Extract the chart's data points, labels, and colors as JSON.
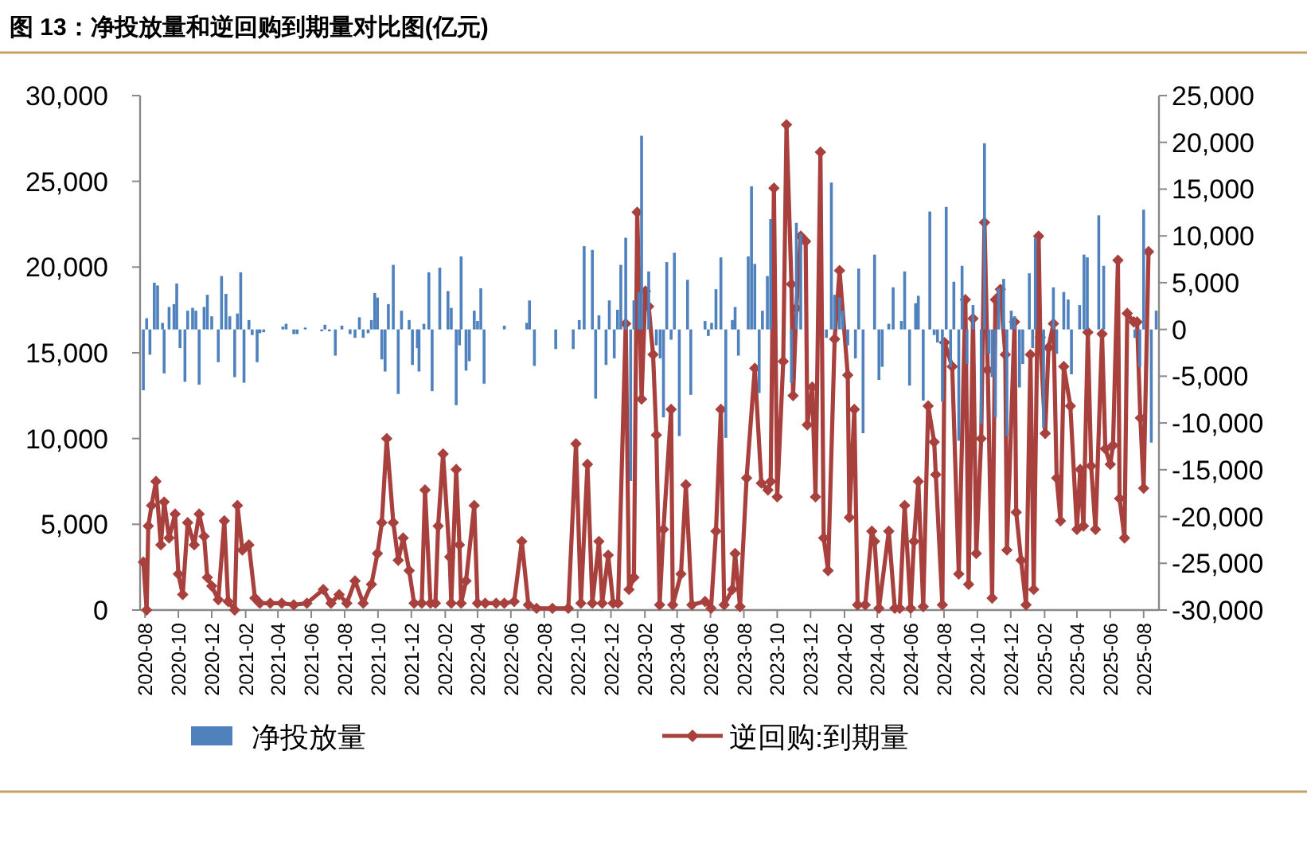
{
  "chart_data": {
    "type": "bar",
    "title": "图 13：净投放量和逆回购到期量对比图(亿元)",
    "xlim": [
      "2020-07-23",
      "2025-08-29"
    ],
    "xticks": [
      "2020-08",
      "2020-10",
      "2020-12",
      "2021-02",
      "2021-04",
      "2021-06",
      "2021-08",
      "2021-10",
      "2021-12",
      "2022-02",
      "2022-04",
      "2022-06",
      "2022-08",
      "2022-10",
      "2022-12",
      "2023-02",
      "2023-04",
      "2023-06",
      "2023-08",
      "2023-10",
      "2023-12",
      "2024-02",
      "2024-04",
      "2024-06",
      "2024-08",
      "2024-10",
      "2024-12",
      "2025-02",
      "2025-04",
      "2025-06",
      "2025-08"
    ],
    "ylim": [
      0,
      30000
    ],
    "yticks": [
      {
        "value": 0,
        "label": "0"
      },
      {
        "value": 5000,
        "label": "5,000"
      },
      {
        "value": 10000,
        "label": "10,000"
      },
      {
        "value": 15000,
        "label": "15,000"
      },
      {
        "value": 20000,
        "label": "20,000"
      },
      {
        "value": 25000,
        "label": "25,000"
      },
      {
        "value": 30000,
        "label": "30,000"
      }
    ],
    "y2lim": [
      -30000,
      25000
    ],
    "y2ticks": [
      {
        "value": -30000,
        "label": "-30,000"
      },
      {
        "value": -25000,
        "label": "-25,000"
      },
      {
        "value": -20000,
        "label": "-20,000"
      },
      {
        "value": -15000,
        "label": "-15,000"
      },
      {
        "value": -10000,
        "label": "-10,000"
      },
      {
        "value": -5000,
        "label": "-5,000"
      },
      {
        "value": 0,
        "label": "0"
      },
      {
        "value": 5000,
        "label": "5,000"
      },
      {
        "value": 10000,
        "label": "10,000"
      },
      {
        "value": 15000,
        "label": "15,000"
      },
      {
        "value": 20000,
        "label": "20,000"
      },
      {
        "value": 25000,
        "label": "25,000"
      }
    ],
    "legend": "bottom",
    "series": [
      {
        "name": "净投放量",
        "axis": "y2",
        "color": "#4f81bd",
        "x": [
          "2020-07-29",
          "2020-08-04",
          "2020-08-10",
          "2020-08-18",
          "2020-08-24",
          "2020-09-02",
          "2020-09-05",
          "2020-09-14",
          "2020-09-23",
          "2020-09-28",
          "2020-10-04",
          "2020-10-13",
          "2020-10-18",
          "2020-10-27",
          "2020-11-02",
          "2020-11-08",
          "2020-11-17",
          "2020-11-23",
          "2020-12-01",
          "2020-12-13",
          "2020-12-19",
          "2020-12-27",
          "2021-01-03",
          "2021-01-12",
          "2021-01-17",
          "2021-01-23",
          "2021-01-29",
          "2021-02-07",
          "2021-02-13",
          "2021-02-22",
          "2021-02-27",
          "2021-03-06",
          "2021-04-10",
          "2021-04-16",
          "2021-04-30",
          "2021-05-06",
          "2021-05-21",
          "2021-06-20",
          "2021-06-26",
          "2021-07-04",
          "2021-07-15",
          "2021-07-27",
          "2021-08-11",
          "2021-08-20",
          "2021-08-28",
          "2021-09-04",
          "2021-09-13",
          "2021-09-19",
          "2021-09-25",
          "2021-09-30",
          "2021-10-08",
          "2021-10-14",
          "2021-10-20",
          "2021-10-29",
          "2021-11-07",
          "2021-11-13",
          "2021-11-27",
          "2021-12-03",
          "2021-12-12",
          "2021-12-15",
          "2021-12-24",
          "2022-01-02",
          "2022-01-08",
          "2022-01-22",
          "2022-02-06",
          "2022-02-12",
          "2022-02-21",
          "2022-02-27",
          "2022-03-02",
          "2022-03-11",
          "2022-03-17",
          "2022-03-26",
          "2022-04-01",
          "2022-04-07",
          "2022-04-13",
          "2022-05-20",
          "2022-06-30",
          "2022-07-05",
          "2022-07-14",
          "2022-08-22",
          "2022-09-23",
          "2022-10-04",
          "2022-10-13",
          "2022-10-28",
          "2022-11-03",
          "2022-11-09",
          "2022-11-22",
          "2022-11-28",
          "2022-12-07",
          "2022-12-13",
          "2022-12-19",
          "2022-12-28",
          "2023-01-06",
          "2023-01-12",
          "2023-01-21",
          "2023-01-26",
          "2023-02-08",
          "2023-02-22",
          "2023-03-01",
          "2023-03-07",
          "2023-03-13",
          "2023-03-21",
          "2023-03-27",
          "2023-04-05",
          "2023-04-20",
          "2023-04-26",
          "2023-05-22",
          "2023-05-28",
          "2023-06-03",
          "2023-06-11",
          "2023-06-20",
          "2023-06-29",
          "2023-07-11",
          "2023-07-16",
          "2023-07-22",
          "2023-08-09",
          "2023-08-15",
          "2023-08-21",
          "2023-08-29",
          "2023-09-04",
          "2023-09-13",
          "2023-09-19",
          "2023-10-27",
          "2023-11-05",
          "2023-11-13",
          "2023-12-30",
          "2024-01-08",
          "2024-01-14",
          "2024-01-23",
          "2024-01-29",
          "2024-02-07",
          "2024-02-21",
          "2024-02-27",
          "2024-03-06",
          "2024-03-27",
          "2024-04-04",
          "2024-04-10",
          "2024-04-22",
          "2024-04-30",
          "2024-05-15",
          "2024-05-21",
          "2024-05-30",
          "2024-06-10",
          "2024-06-15",
          "2024-06-24",
          "2024-07-06",
          "2024-07-14",
          "2024-07-20",
          "2024-07-29",
          "2024-08-05",
          "2024-08-13",
          "2024-08-19",
          "2024-08-28",
          "2024-09-03",
          "2024-09-12",
          "2024-09-23",
          "2024-10-08",
          "2024-10-14",
          "2024-10-22",
          "2024-10-28",
          "2024-11-03",
          "2024-11-09",
          "2024-11-18",
          "2024-11-24",
          "2024-12-02",
          "2024-12-08",
          "2024-12-17",
          "2024-12-23",
          "2025-01-04",
          "2025-01-10",
          "2025-01-15",
          "2025-01-30",
          "2025-02-17",
          "2025-02-23",
          "2025-03-08",
          "2025-03-16",
          "2025-03-22",
          "2025-04-06",
          "2025-04-14",
          "2025-04-20",
          "2025-05-11",
          "2025-05-20",
          "2025-07-16",
          "2025-07-25",
          "2025-08-01",
          "2025-08-15",
          "2025-08-24"
        ],
        "values": [
          -6500,
          1200,
          -2700,
          5000,
          4700,
          700,
          -4700,
          2400,
          2700,
          4900,
          -2000,
          -5600,
          2000,
          2300,
          2000,
          -5900,
          2400,
          3700,
          1400,
          -3500,
          5700,
          3800,
          1400,
          -5100,
          1700,
          6100,
          -5700,
          1000,
          -600,
          -3500,
          -400,
          -300,
          300,
          600,
          -500,
          -500,
          200,
          -200,
          500,
          -200,
          -2800,
          400,
          -500,
          -900,
          1300,
          -900,
          -400,
          1000,
          3900,
          3400,
          -3200,
          -4500,
          2700,
          6900,
          -6900,
          2000,
          1000,
          -3800,
          -2000,
          -4500,
          600,
          6100,
          -6600,
          6600,
          4100,
          2300,
          -8100,
          -1700,
          7800,
          -4400,
          -3400,
          2000,
          900,
          4400,
          -5800,
          400,
          700,
          3100,
          -3900,
          -2100,
          -2100,
          1000,
          8900,
          8500,
          -7400,
          1500,
          -3800,
          3100,
          -3100,
          2100,
          6900,
          9800,
          -16200,
          3100,
          4000,
          20700,
          6200,
          -1700,
          -3100,
          -9400,
          7200,
          -1100,
          8200,
          -11400,
          5300,
          -7000,
          900,
          -700,
          700,
          4300,
          7700,
          -11600,
          1000,
          2400,
          -2800,
          7800,
          15300,
          7000,
          -6800,
          2000,
          5700,
          11800,
          -5700,
          11400,
          10200,
          -900,
          15700,
          3700,
          3400,
          2000,
          -1700,
          -3100,
          6500,
          -11100,
          8000,
          -5400,
          -4000,
          600,
          4500,
          900,
          6200,
          -6000,
          2800,
          3600,
          -7600,
          12600,
          -600,
          -1400,
          -7700,
          13100,
          -4000,
          5100,
          -11900,
          6800,
          -3700,
          2600,
          -10100,
          19900,
          -2600,
          -5100,
          -9400,
          4400,
          5400,
          -11400,
          2000,
          1400,
          -6200,
          -3700,
          6000,
          -2000,
          9800,
          -10500,
          4500,
          -2600,
          4000,
          3200,
          -4800,
          2600,
          8000,
          7700,
          12200,
          6800,
          -900,
          -4000,
          12800,
          -12100,
          2000
        ]
      },
      {
        "name": "逆回购:到期量",
        "type": "line",
        "axis": "y",
        "color": "#a8403d",
        "marker": "diamond",
        "line_style": "solid",
        "x": [
          "2020-07-29",
          "2020-08-04",
          "2020-08-07",
          "2020-08-13",
          "2020-08-21",
          "2020-08-30",
          "2020-09-05",
          "2020-09-14",
          "2020-09-25",
          "2020-10-01",
          "2020-10-09",
          "2020-10-18",
          "2020-10-30",
          "2020-11-08",
          "2020-11-17",
          "2020-11-23",
          "2020-12-01",
          "2020-12-13",
          "2020-12-24",
          "2020-12-31",
          "2021-01-12",
          "2021-01-17",
          "2021-01-26",
          "2021-02-07",
          "2021-02-18",
          "2021-02-27",
          "2021-03-18",
          "2021-04-08",
          "2021-04-30",
          "2021-05-24",
          "2021-06-23",
          "2021-07-07",
          "2021-07-22",
          "2021-08-05",
          "2021-08-20",
          "2021-09-04",
          "2021-09-19",
          "2021-09-30",
          "2021-10-08",
          "2021-10-17",
          "2021-10-29",
          "2021-11-07",
          "2021-11-16",
          "2021-11-27",
          "2021-12-06",
          "2021-12-20",
          "2021-12-26",
          "2022-01-05",
          "2022-01-14",
          "2022-01-19",
          "2022-01-28",
          "2022-02-09",
          "2022-02-12",
          "2022-02-21",
          "2022-02-27",
          "2022-03-02",
          "2022-03-11",
          "2022-03-26",
          "2022-04-01",
          "2022-04-15",
          "2022-05-05",
          "2022-05-20",
          "2022-06-07",
          "2022-06-21",
          "2022-07-03",
          "2022-07-18",
          "2022-08-16",
          "2022-09-14",
          "2022-09-28",
          "2022-10-07",
          "2022-10-19",
          "2022-10-28",
          "2022-11-09",
          "2022-11-15",
          "2022-11-26",
          "2022-12-05",
          "2022-12-14",
          "2022-12-28",
          "2023-01-03",
          "2023-01-12",
          "2023-01-18",
          "2023-01-26",
          "2023-02-02",
          "2023-02-08",
          "2023-02-16",
          "2023-02-22",
          "2023-02-28",
          "2023-03-07",
          "2023-03-21",
          "2023-03-24",
          "2023-04-08",
          "2023-04-17",
          "2023-04-28",
          "2023-05-22",
          "2023-06-02",
          "2023-06-11",
          "2023-06-20",
          "2023-06-26",
          "2023-07-11",
          "2023-07-16",
          "2023-07-25",
          "2023-08-06",
          "2023-08-21",
          "2023-09-02",
          "2023-09-14",
          "2023-09-19",
          "2023-09-25",
          "2023-10-01",
          "2023-10-12",
          "2023-10-18",
          "2023-10-27",
          "2023-10-30",
          "2023-11-05",
          "2023-11-13",
          "2023-11-22",
          "2023-11-25",
          "2023-12-04",
          "2023-12-10",
          "2023-12-19",
          "2023-12-25",
          "2024-01-02",
          "2024-01-14",
          "2024-01-23",
          "2024-02-07",
          "2024-02-10",
          "2024-02-19",
          "2024-02-25",
          "2024-03-10",
          "2024-03-22",
          "2024-03-27",
          "2024-04-04",
          "2024-04-22",
          "2024-05-03",
          "2024-05-12",
          "2024-05-21",
          "2024-06-01",
          "2024-06-07",
          "2024-06-15",
          "2024-06-24",
          "2024-07-03",
          "2024-07-14",
          "2024-07-17",
          "2024-07-29",
          "2024-08-02",
          "2024-08-16",
          "2024-08-28",
          "2024-09-09",
          "2024-09-15",
          "2024-09-23",
          "2024-09-29",
          "2024-10-08",
          "2024-10-14",
          "2024-10-20",
          "2024-10-28",
          "2024-11-03",
          "2024-11-12",
          "2024-11-21",
          "2024-11-24",
          "2024-12-08",
          "2024-12-11",
          "2024-12-20",
          "2024-12-29",
          "2025-01-06",
          "2025-01-12",
          "2025-01-21",
          "2025-01-24",
          "2025-02-02",
          "2025-02-08",
          "2025-02-17",
          "2025-02-23",
          "2025-03-02",
          "2025-03-08",
          "2025-03-20",
          "2025-04-01",
          "2025-04-07",
          "2025-04-13",
          "2025-04-21",
          "2025-04-27",
          "2025-05-05",
          "2025-05-17",
          "2025-05-23",
          "2025-06-01",
          "2025-06-06",
          "2025-06-15",
          "2025-06-18",
          "2025-06-27",
          "2025-07-02",
          "2025-07-14",
          "2025-07-20",
          "2025-07-26",
          "2025-08-01",
          "2025-08-10"
        ],
        "values": [
          2800,
          0,
          4900,
          6100,
          7500,
          3800,
          6300,
          4200,
          5600,
          2100,
          900,
          5100,
          3800,
          5600,
          4300,
          1900,
          1400,
          600,
          5200,
          500,
          0,
          6100,
          3500,
          3800,
          700,
          400,
          400,
          400,
          300,
          400,
          1200,
          400,
          900,
          400,
          1700,
          400,
          1500,
          3300,
          5100,
          10000,
          5100,
          2900,
          4200,
          2300,
          400,
          400,
          7000,
          400,
          400,
          4900,
          9100,
          3100,
          400,
          8200,
          3800,
          400,
          1700,
          6100,
          400,
          400,
          400,
          400,
          500,
          4000,
          300,
          100,
          100,
          100,
          9700,
          400,
          8500,
          400,
          4000,
          400,
          3200,
          400,
          400,
          16700,
          1200,
          1900,
          23200,
          12300,
          18600,
          17700,
          14900,
          10200,
          300,
          4700,
          11700,
          300,
          2100,
          7300,
          300,
          500,
          100,
          4600,
          11700,
          300,
          1200,
          3300,
          200,
          7700,
          14100,
          7400,
          7000,
          7500,
          24600,
          6600,
          14500,
          28300,
          19000,
          12500,
          17600,
          21800,
          21500,
          10800,
          13000,
          6600,
          26700,
          4200,
          2300,
          15800,
          19800,
          13700,
          5400,
          11700,
          300,
          300,
          4600,
          4000,
          100,
          4600,
          100,
          100,
          6100,
          100,
          4000,
          7500,
          200,
          11900,
          9800,
          7900,
          300,
          15600,
          14200,
          2100,
          18100,
          1500,
          17000,
          3300,
          10000,
          22600,
          14000,
          700,
          18100,
          18700,
          14900,
          3500,
          16800,
          5700,
          2900,
          300,
          14900,
          1200,
          21800,
          15900,
          10300,
          15300,
          16700,
          7700,
          5200,
          14200,
          11900,
          4700,
          8200,
          4900,
          16200,
          8400,
          4700,
          16100,
          9400,
          8500,
          9600,
          20400,
          6500,
          4200,
          17300,
          16800,
          16800,
          11200,
          7100,
          20900
        ]
      }
    ]
  }
}
